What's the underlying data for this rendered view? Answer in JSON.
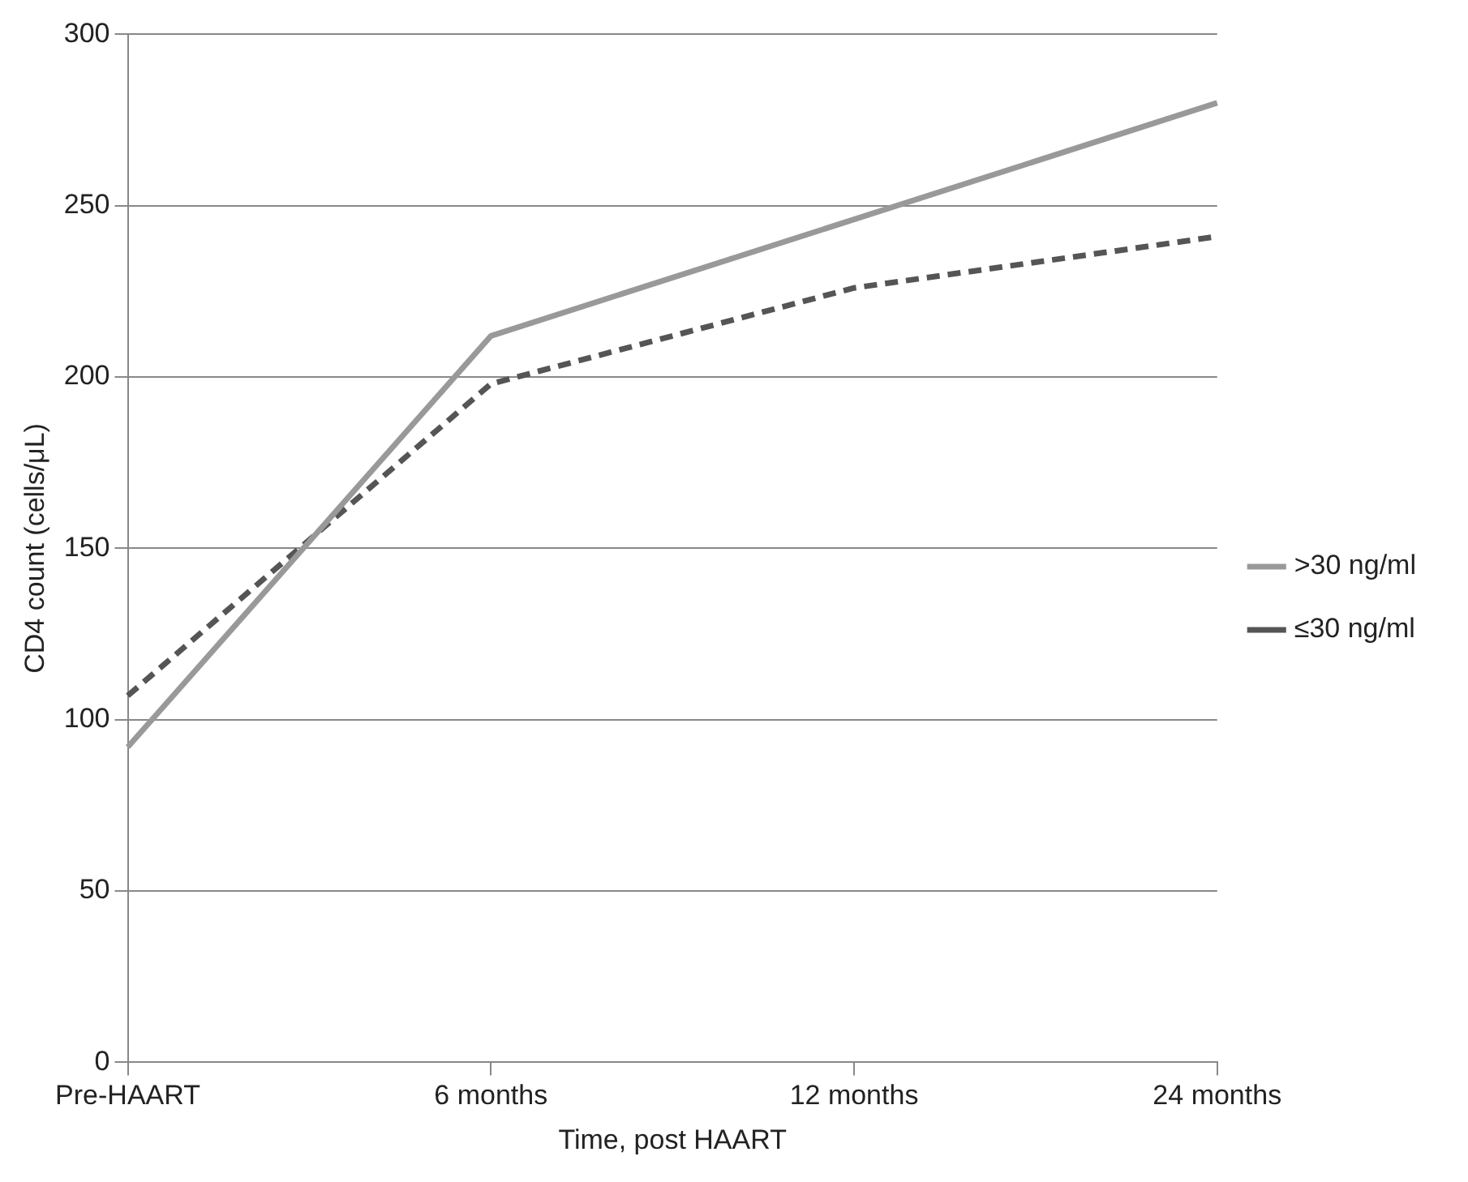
{
  "chart_data": {
    "type": "line",
    "xlabel": "Time, post HAART",
    "ylabel": "CD4 count (cells/μL)",
    "categories": [
      "Pre-HAART",
      "6 months",
      "12 months",
      "24 months"
    ],
    "series": [
      {
        "name": ">30 ng/ml",
        "color": "#999999",
        "line_style": "solid",
        "values": [
          92,
          212,
          246,
          280
        ]
      },
      {
        "name": "≤30 ng/ml",
        "color": "#555555",
        "line_style": "dashed",
        "values": [
          107,
          198,
          226,
          241
        ]
      }
    ],
    "ylim": [
      0,
      300
    ],
    "yticks": [
      0,
      50,
      100,
      150,
      200,
      250,
      300
    ],
    "grid": "y",
    "legend": "right",
    "marker": "none"
  }
}
